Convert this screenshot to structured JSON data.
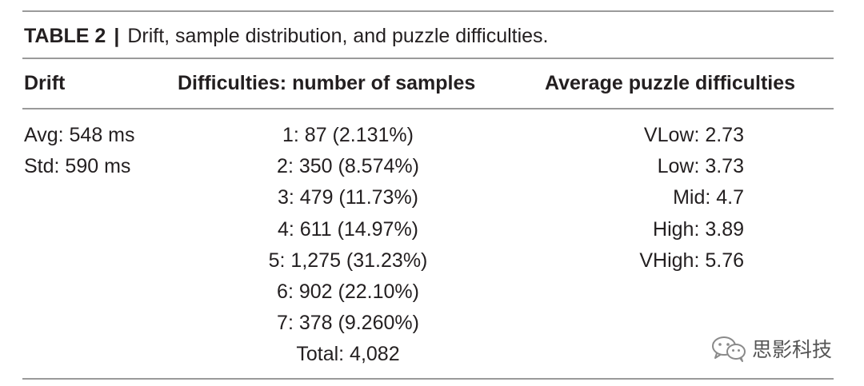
{
  "table": {
    "label": "TABLE 2",
    "separator": "|",
    "title": "Drift, sample distribution, and puzzle difficulties.",
    "headers": {
      "drift": "Drift",
      "difficulties": "Difficulties: number of samples",
      "average": "Average puzzle difficulties"
    },
    "drift": [
      "Avg: 548 ms",
      "Std: 590 ms"
    ],
    "samples": [
      "1: 87 (2.131%)",
      "2: 350 (8.574%)",
      "3: 479 (11.73%)",
      "4: 611 (14.97%)",
      "5: 1,275 (31.23%)",
      "6: 902 (22.10%)",
      "7: 378 (9.260%)",
      "Total: 4,082"
    ],
    "averages": [
      "VLow: 2.73",
      "Low: 3.73",
      "Mid: 4.7",
      "High: 3.89",
      "VHigh: 5.76"
    ]
  },
  "watermark": {
    "text": "思影科技",
    "icon": "wechat-icon"
  }
}
